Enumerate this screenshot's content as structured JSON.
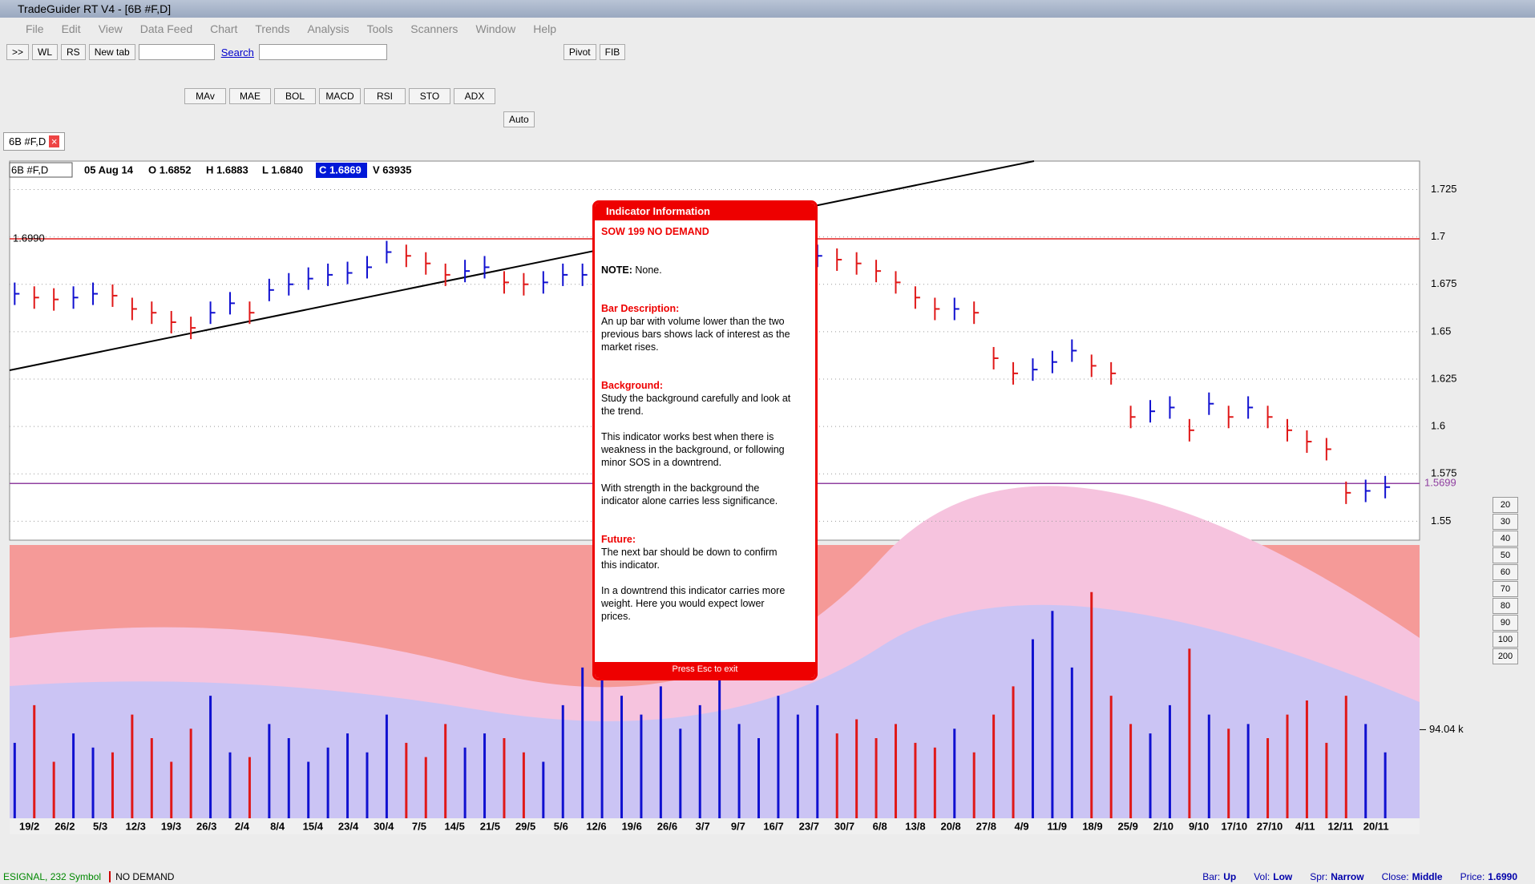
{
  "window": {
    "title": "TradeGuider RT V4  - [6B #F,D]",
    "menu": [
      "File",
      "Edit",
      "View",
      "Data Feed",
      "Chart",
      "Trends",
      "Analysis",
      "Tools",
      "Scanners",
      "Window",
      "Help"
    ]
  },
  "toolbar": {
    "buttons": [
      ">>",
      "WL",
      "RS",
      "New tab"
    ],
    "search": "Search",
    "pivot": "Pivot",
    "fib": "FIB",
    "indicators": [
      "MAv",
      "MAE",
      "BOL",
      "MACD",
      "RSI",
      "STO",
      "ADX"
    ],
    "auto": "Auto"
  },
  "tab": "6B #F,D",
  "header": {
    "symbol": "6B #F,D",
    "date": "05 Aug 14",
    "open": "O 1.6852",
    "high": "H 1.6883",
    "low": "L 1.6840",
    "close": "C 1.6869",
    "volume": "V 63935"
  },
  "chart_data": {
    "type": "price_bars",
    "values": [
      1.67,
      1.668,
      1.667,
      1.668,
      1.67,
      1.669,
      1.662,
      1.66,
      1.655,
      1.652,
      1.66,
      1.665,
      1.66,
      1.672,
      1.675,
      1.678,
      1.68,
      1.681,
      1.684,
      1.692,
      1.69,
      1.686,
      1.68,
      1.682,
      1.684,
      1.676,
      1.675,
      1.676,
      1.68,
      1.68,
      null,
      null,
      null,
      null,
      null,
      null,
      null,
      null,
      null,
      null,
      null,
      1.69,
      1.688,
      1.686,
      1.682,
      1.676,
      1.668,
      1.662,
      1.662,
      1.66,
      1.636,
      1.628,
      1.63,
      1.634,
      1.64,
      1.632,
      1.628,
      1.605,
      1.608,
      1.61,
      1.598,
      1.612,
      1.605,
      1.61,
      1.605,
      1.598,
      1.592,
      1.588,
      1.565,
      1.566,
      1.568
    ],
    "ylim": [
      1.54,
      1.74
    ],
    "yticks": [
      1.725,
      1.7,
      1.675,
      1.65,
      1.625,
      1.6,
      1.575,
      1.55
    ],
    "levels": [
      {
        "value": 1.699,
        "label": "1.6990",
        "color": "#e02020"
      },
      {
        "value": 1.5699,
        "label": "1.5699",
        "color": "#9040a0"
      }
    ],
    "x_labels": [
      "19/2",
      "26/2",
      "5/3",
      "12/3",
      "19/3",
      "26/3",
      "2/4",
      "8/4",
      "15/4",
      "23/4",
      "30/4",
      "7/5",
      "14/5",
      "21/5",
      "29/5",
      "5/6",
      "12/6",
      "19/6",
      "26/6",
      "3/7",
      "9/7",
      "16/7",
      "23/7",
      "30/7",
      "6/8",
      "13/8",
      "20/8",
      "27/8",
      "4/9",
      "11/9",
      "18/9",
      "25/9",
      "2/10",
      "9/10",
      "17/10",
      "27/10",
      "4/11",
      "12/11",
      "20/11"
    ],
    "up_color": "#1010d0",
    "down_color": "#e01818",
    "volume": {
      "values": [
        80,
        120,
        60,
        90,
        75,
        70,
        110,
        85,
        60,
        95,
        130,
        70,
        65,
        100,
        85,
        60,
        75,
        90,
        70,
        110,
        80,
        65,
        100,
        75,
        90,
        85,
        70,
        60,
        120,
        160,
        180,
        130,
        110,
        140,
        95,
        120,
        150,
        100,
        85,
        130,
        110,
        120,
        90,
        105,
        85,
        100,
        80,
        75,
        95,
        70,
        110,
        140,
        190,
        220,
        160,
        240,
        130,
        100,
        90,
        120,
        180,
        110,
        95,
        100,
        85,
        110,
        125,
        80,
        130,
        100,
        70
      ],
      "ylim": [
        0,
        290
      ],
      "yticks": [
        {
          "value": 94.04,
          "label": "94.04 k"
        }
      ]
    }
  },
  "popup": {
    "title": "Indicator Information",
    "heading": "SOW 199 NO DEMAND",
    "note_label": "NOTE:",
    "note": "None.",
    "sections": [
      {
        "title": "Bar Description:",
        "paragraphs": [
          "An up bar with volume lower than the two previous bars shows lack of interest as the market rises."
        ]
      },
      {
        "title": "Background:",
        "paragraphs": [
          "Study the background carefully and look at the trend.",
          "This indicator works best when there is weakness in the background, or following minor SOS in a downtrend.",
          "With strength in the background the indicator alone carries less significance."
        ]
      },
      {
        "title": "Future:",
        "paragraphs": [
          "The next bar should be down to confirm this indicator.",
          "In a downtrend this indicator carries more weight. Here you would expect lower prices."
        ]
      }
    ],
    "footer": "Press Esc to exit"
  },
  "zoom": [
    "20",
    "30",
    "40",
    "50",
    "60",
    "70",
    "80",
    "90",
    "100",
    "200"
  ],
  "status": {
    "source": "ESIGNAL, 232 Symbol",
    "indicator": "NO DEMAND",
    "items": [
      {
        "label": "Bar:",
        "value": "Up"
      },
      {
        "label": "Vol:",
        "value": "Low"
      },
      {
        "label": "Spr:",
        "value": "Narrow"
      },
      {
        "label": "Close:",
        "value": "Middle"
      },
      {
        "label": "Price:",
        "value": "1.6990"
      }
    ]
  }
}
